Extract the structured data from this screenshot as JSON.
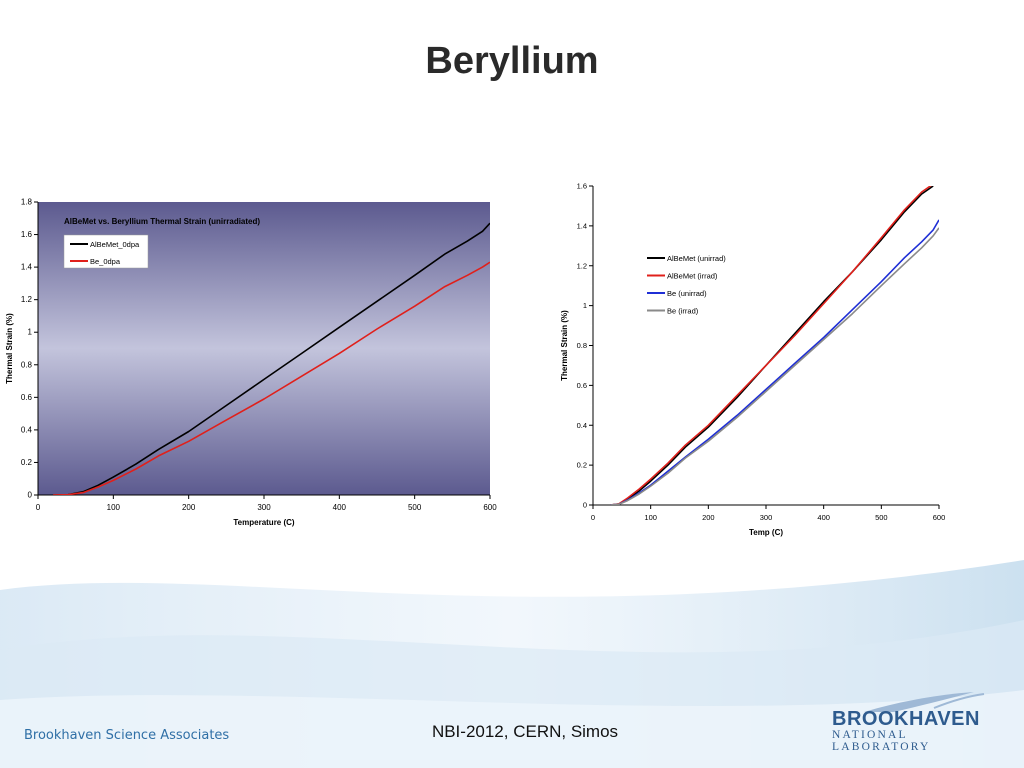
{
  "slide": {
    "title": "Beryllium",
    "footer_org": "Brookhaven Science Associates",
    "footer_center": "NBI-2012, CERN, Simos",
    "logo_name": "BROOKHAVEN",
    "logo_sub": "NATIONAL LABORATORY"
  },
  "colors": {
    "black_series": "#000000",
    "red_series": "#e0201b",
    "blue_series": "#1f2fd6",
    "gray_series": "#8a8a8a",
    "left_plot_bg_top": "#5c5a8f",
    "left_plot_bg_mid": "#c3c4dc",
    "brand": "#2e5b8e"
  },
  "chart_data": [
    {
      "type": "line",
      "title": "AlBeMet vs. Beryllium Thermal Strain (unirradiated)",
      "xlabel": "Temperature (C)",
      "ylabel": "Thermal Strain (%)",
      "xlim": [
        0,
        600
      ],
      "ylim": [
        0,
        1.8
      ],
      "xticks": [
        "0",
        "100",
        "200",
        "300",
        "400",
        "500",
        "600"
      ],
      "yticks": [
        "0",
        "0.2",
        "0.4",
        "0.6",
        "0.8",
        "1",
        "1.2",
        "1.4",
        "1.6",
        "1.8"
      ],
      "legend_position": "top-left",
      "series": [
        {
          "name": "AlBeMet_0dpa",
          "color": "#000000",
          "x": [
            20,
            40,
            60,
            80,
            100,
            130,
            160,
            200,
            250,
            300,
            350,
            400,
            450,
            500,
            540,
            570,
            590,
            600
          ],
          "y": [
            0,
            0.002,
            0.02,
            0.06,
            0.11,
            0.19,
            0.28,
            0.39,
            0.55,
            0.71,
            0.87,
            1.03,
            1.19,
            1.35,
            1.48,
            1.56,
            1.62,
            1.67
          ]
        },
        {
          "name": "Be_0dpa",
          "color": "#e0201b",
          "x": [
            20,
            40,
            60,
            80,
            100,
            130,
            160,
            200,
            250,
            300,
            350,
            400,
            450,
            500,
            540,
            570,
            590,
            600
          ],
          "y": [
            0,
            0.002,
            0.015,
            0.05,
            0.09,
            0.16,
            0.24,
            0.33,
            0.46,
            0.59,
            0.73,
            0.87,
            1.02,
            1.16,
            1.28,
            1.35,
            1.4,
            1.43
          ]
        }
      ]
    },
    {
      "type": "line",
      "title": "",
      "xlabel": "Temp (C)",
      "ylabel": "Thermal Strain (%)",
      "xlim": [
        0,
        600
      ],
      "ylim": [
        0,
        1.6
      ],
      "xticks": [
        "0",
        "100",
        "200",
        "300",
        "400",
        "500",
        "600"
      ],
      "yticks": [
        "0",
        "0.2",
        "0.4",
        "0.6",
        "0.8",
        "1",
        "1.2",
        "1.4",
        "1.6"
      ],
      "legend_position": "top-left",
      "series": [
        {
          "name": "AlBeMet (unirrad)",
          "color": "#000000",
          "x": [
            30,
            45,
            60,
            80,
            100,
            130,
            160,
            200,
            250,
            300,
            350,
            400,
            450,
            500,
            540,
            570,
            590
          ],
          "y": [
            0,
            0.005,
            0.03,
            0.07,
            0.12,
            0.2,
            0.29,
            0.39,
            0.54,
            0.7,
            0.86,
            1.02,
            1.17,
            1.33,
            1.47,
            1.56,
            1.6
          ]
        },
        {
          "name": "AlBeMet (irrad)",
          "color": "#e0201b",
          "x": [
            30,
            45,
            60,
            80,
            100,
            130,
            160,
            200,
            250,
            300,
            350,
            400,
            450,
            500,
            540,
            570,
            590
          ],
          "y": [
            0,
            0.006,
            0.035,
            0.08,
            0.13,
            0.21,
            0.3,
            0.4,
            0.55,
            0.7,
            0.85,
            1.01,
            1.17,
            1.34,
            1.48,
            1.57,
            1.61
          ]
        },
        {
          "name": "Be (unirrad)",
          "color": "#1f2fd6",
          "x": [
            30,
            45,
            60,
            80,
            100,
            130,
            160,
            200,
            250,
            300,
            350,
            400,
            450,
            500,
            540,
            570,
            590,
            600
          ],
          "y": [
            0,
            0.004,
            0.025,
            0.06,
            0.1,
            0.17,
            0.24,
            0.33,
            0.45,
            0.58,
            0.71,
            0.84,
            0.98,
            1.12,
            1.24,
            1.32,
            1.38,
            1.43
          ]
        },
        {
          "name": "Be (irrad)",
          "color": "#8a8a8a",
          "x": [
            30,
            45,
            60,
            80,
            100,
            130,
            160,
            200,
            250,
            300,
            350,
            400,
            450,
            500,
            540,
            570,
            590,
            600
          ],
          "y": [
            0,
            0.004,
            0.022,
            0.055,
            0.095,
            0.16,
            0.235,
            0.32,
            0.44,
            0.57,
            0.7,
            0.83,
            0.96,
            1.1,
            1.21,
            1.29,
            1.35,
            1.39
          ]
        }
      ]
    }
  ]
}
